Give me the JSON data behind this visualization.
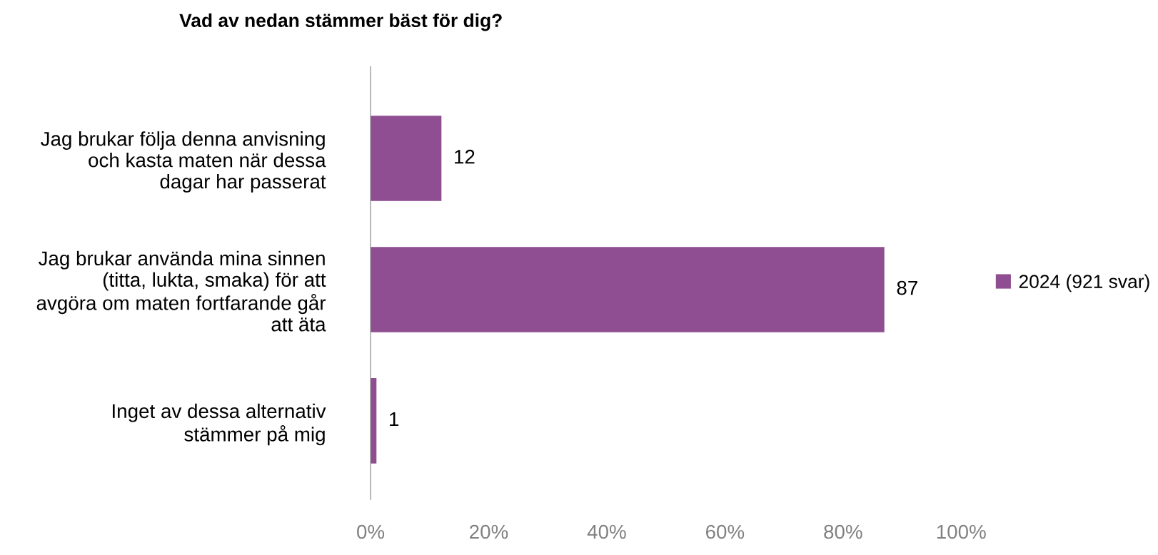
{
  "chart_data": {
    "type": "bar",
    "orientation": "horizontal",
    "title": "Vad av nedan stämmer bäst för dig?",
    "categories": [
      "Jag brukar följa denna anvisning\noch kasta maten när dessa\ndagar har passerat",
      "Jag brukar använda mina sinnen\n(titta, lukta, smaka) för att\navgöra om maten fortfarande går\natt äta",
      "Inget av dessa alternativ\nstämmer på mig"
    ],
    "series": [
      {
        "name": "2024 (921 svar)",
        "color": "#8e4e91",
        "values": [
          12,
          87,
          1
        ]
      }
    ],
    "xlim": [
      0,
      100
    ],
    "xticks": [
      {
        "value": 0,
        "label": "0%"
      },
      {
        "value": 20,
        "label": "20%"
      },
      {
        "value": 40,
        "label": "40%"
      },
      {
        "value": 60,
        "label": "60%"
      },
      {
        "value": 80,
        "label": "80%"
      },
      {
        "value": 100,
        "label": "100%"
      }
    ],
    "data_labels": true,
    "legend": "right",
    "grid": false
  }
}
